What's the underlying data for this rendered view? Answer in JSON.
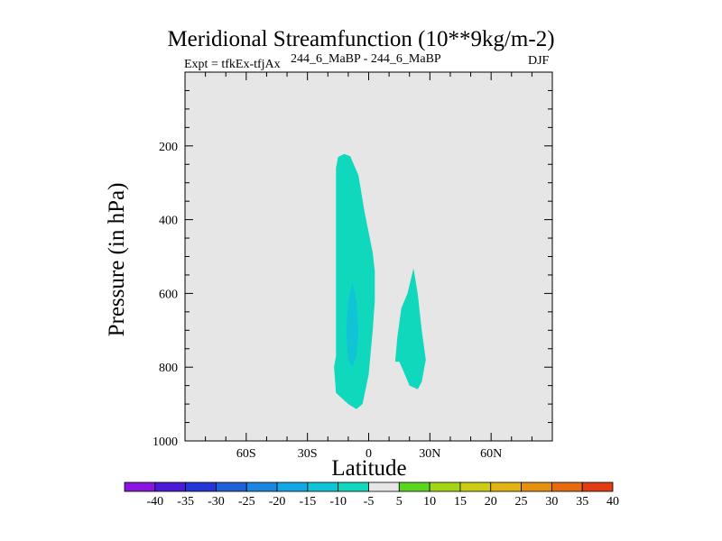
{
  "chart_data": {
    "type": "contour",
    "title": "Meridional Streamfunction (10**9kg/m-2)",
    "left_label": "Expt = tfkEx-tfjAx",
    "center_label": "244_6_MaBP - 244_6_MaBP",
    "right_label": "DJF",
    "xlabel": "Latitude",
    "ylabel": "Pressure (in hPa)",
    "x_ticks": [
      "60S",
      "30S",
      "0",
      "30N",
      "60N"
    ],
    "x_tick_values": [
      -60,
      -30,
      0,
      30,
      60
    ],
    "xlim": [
      -90,
      90
    ],
    "y_ticks": [
      "200",
      "400",
      "600",
      "800",
      "1000"
    ],
    "y_tick_values": [
      200,
      400,
      600,
      800,
      1000
    ],
    "ylim": [
      0,
      1000
    ],
    "background_color": "#e6e6e6",
    "colorbar": {
      "labels": [
        "-40",
        "-35",
        "-30",
        "-25",
        "-20",
        "-15",
        "-10",
        "-5",
        "5",
        "10",
        "15",
        "20",
        "25",
        "30",
        "35",
        "40"
      ],
      "colors": [
        "#8a14e0",
        "#4b1ad6",
        "#2536d6",
        "#1f5fd8",
        "#1a86e0",
        "#12a8e6",
        "#10c4d6",
        "#10d8bc",
        "#e6e6e6",
        "#5ad61e",
        "#a2d614",
        "#cccc14",
        "#e0b412",
        "#e69010",
        "#e66a10",
        "#e23c12"
      ]
    },
    "regions": [
      {
        "name": "negative-5-to-0-main",
        "color": "#10d8bc",
        "points": [
          [
            -15,
            230
          ],
          [
            -12,
            222
          ],
          [
            -9,
            228
          ],
          [
            -5,
            280
          ],
          [
            -2,
            380
          ],
          [
            2,
            490
          ],
          [
            3,
            540
          ],
          [
            3,
            620
          ],
          [
            2,
            700
          ],
          [
            0,
            820
          ],
          [
            -3,
            900
          ],
          [
            -6,
            914
          ],
          [
            -10,
            900
          ],
          [
            -16,
            870
          ],
          [
            -17,
            800
          ],
          [
            -16,
            770
          ],
          [
            -16,
            600
          ],
          [
            -16,
            400
          ],
          [
            -16,
            260
          ]
        ]
      },
      {
        "name": "negative-10-to-5-core",
        "color": "#10c4d6",
        "points": [
          [
            -8,
            570
          ],
          [
            -6,
            620
          ],
          [
            -5,
            700
          ],
          [
            -6,
            770
          ],
          [
            -8,
            800
          ],
          [
            -10,
            780
          ],
          [
            -11,
            700
          ],
          [
            -10,
            620
          ]
        ]
      },
      {
        "name": "negative-5-to-0-north",
        "color": "#10d8bc",
        "points": [
          [
            22,
            532
          ],
          [
            24,
            600
          ],
          [
            26,
            700
          ],
          [
            28,
            780
          ],
          [
            26,
            840
          ],
          [
            24,
            860
          ],
          [
            20,
            850
          ],
          [
            17,
            810
          ],
          [
            15,
            785
          ],
          [
            13,
            785
          ],
          [
            14,
            720
          ],
          [
            16,
            640
          ],
          [
            19,
            600
          ]
        ]
      }
    ]
  }
}
